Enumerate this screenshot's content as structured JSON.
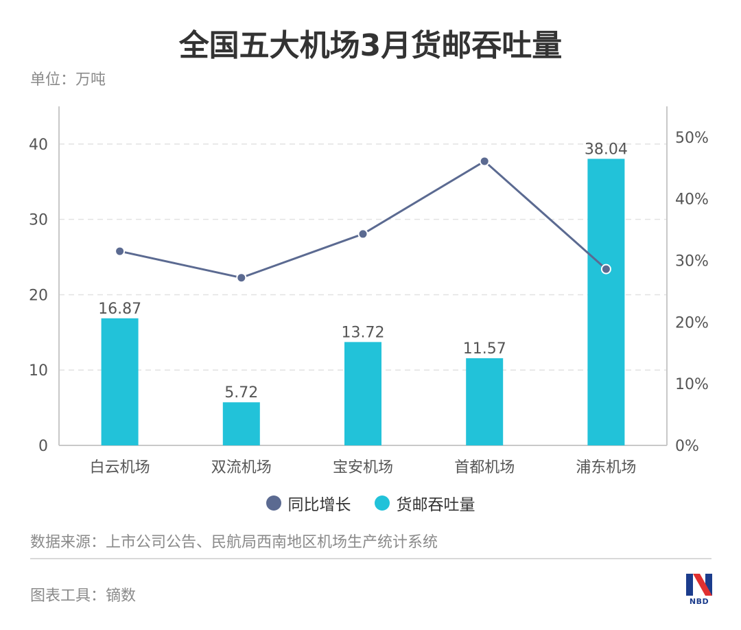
{
  "header": {
    "title": "全国五大机场3月货邮吞吐量",
    "unit": "单位：万吨"
  },
  "colors": {
    "bar": "#22c2d9",
    "line": "#5b6a91",
    "grid": "#e2e2e2",
    "axis": "#c8c8c8"
  },
  "chart_data": {
    "type": "bar",
    "title": "全国五大机场3月货邮吞吐量",
    "categories": [
      "白云机场",
      "双流机场",
      "宝安机场",
      "首都机场",
      "浦东机场"
    ],
    "series": [
      {
        "name": "货邮吞吐量",
        "type": "bar",
        "axis": "left",
        "values": [
          16.87,
          5.72,
          13.72,
          11.57,
          38.04
        ],
        "value_labels": [
          "16.87",
          "5.72",
          "13.72",
          "11.57",
          "38.04"
        ]
      },
      {
        "name": "同比增长",
        "type": "line",
        "axis": "right",
        "values": [
          31.5,
          27.2,
          34.3,
          46.1,
          28.6
        ]
      }
    ],
    "left_axis": {
      "ylim": [
        0,
        45
      ],
      "ticks": [
        0,
        10,
        20,
        30,
        40
      ],
      "tick_labels": [
        "0",
        "10",
        "20",
        "30",
        "40"
      ]
    },
    "right_axis": {
      "ylim": [
        0,
        55
      ],
      "ticks": [
        0,
        10,
        20,
        30,
        40,
        50
      ],
      "tick_labels": [
        "0%",
        "10%",
        "20%",
        "30%",
        "40%",
        "50%"
      ]
    },
    "grid": true,
    "legend_position": "bottom-center"
  },
  "legend": [
    {
      "label": "同比增长",
      "color": "#5b6a91"
    },
    {
      "label": "货邮吞吐量",
      "color": "#22c2d9"
    }
  ],
  "footer": {
    "source": "数据来源：上市公司公告、民航局西南地区机场生产统计系统",
    "tool": "图表工具：镝数",
    "logo_text": "NBD"
  }
}
